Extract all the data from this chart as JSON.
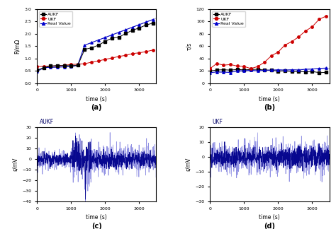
{
  "title_a": "(a)",
  "title_b": "(b)",
  "title_c": "(c)",
  "title_d": "(d)",
  "xlabel": "time (s)",
  "ylabel_a": "R/mΩ",
  "ylabel_b": "τ/s",
  "ylabel_c": "ε/mV",
  "ylabel_d": "ε/mV",
  "label_aukf": "AUKF",
  "label_ukf": "UKF",
  "label_real": "Real Value",
  "color_aukf": "#000000",
  "color_ukf": "#cc0000",
  "color_real": "#0000cc",
  "color_noise_dark": "#00008B",
  "color_noise_light": "#7777dd",
  "background": "#ffffff"
}
